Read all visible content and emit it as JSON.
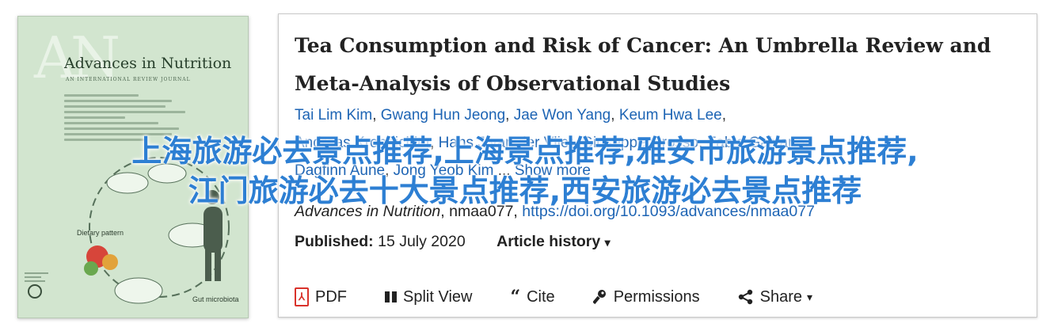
{
  "cover": {
    "monogram": "AN",
    "journal_title": "Advances in Nutrition",
    "journal_subtitle": "AN INTERNATIONAL REVIEW JOURNAL",
    "diagram_labels": {
      "dietary_pattern": "Dietary pattern",
      "gut_microbiota": "Gut microbiota"
    },
    "cover_color": "#d2e5cf"
  },
  "article": {
    "title": "Tea Consumption and Risk of Cancer: An Umbrella Review and Meta-Analysis of Observational Studies",
    "authors": [
      "Tai Lim Kim",
      "Gwang Hun Jeong",
      "Jae Won Yang",
      "Keum Hwa Lee",
      "Andreas Kronbichler",
      "Hans J van der Vliet",
      "Giuseppe Grosso",
      "Fabio Galvano",
      "Dagfinn Aune",
      "Jong Yeob Kim"
    ],
    "show_more": "Show more",
    "journal": "Advances in Nutrition",
    "article_id": ", nmaa077, ",
    "doi": "https://doi.org/10.1093/advances/nmaa077",
    "published_label": "Published:",
    "published_date": "15 July 2020",
    "article_history": "Article history",
    "link_color": "#1d64b4"
  },
  "toolbar": {
    "pdf": "PDF",
    "split_view": "Split View",
    "cite": "Cite",
    "permissions": "Permissions",
    "share": "Share"
  },
  "watermark": {
    "line1": "上海旅游必去景点推荐,上海景点推荐,雅安市旅游景点推荐,",
    "line2": "江门旅游必去十大景点推荐,西安旅游必去景点推荐"
  }
}
